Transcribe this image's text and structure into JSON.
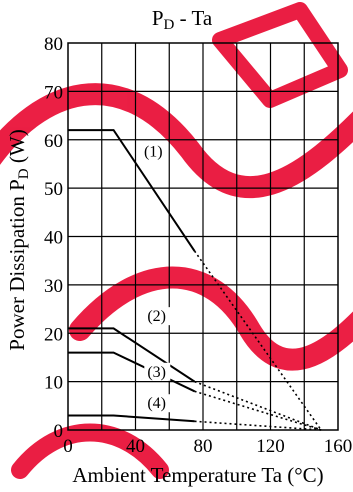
{
  "chart_data": {
    "type": "line",
    "title": "P_D - Ta",
    "title_main": "P",
    "title_sub": "D",
    "title_rest": " - Ta",
    "xlabel": "Ambient Temperature Ta (°C)",
    "ylabel": "Power Dissipation P_D (W)",
    "ylabel_main": "Power Dissipation P",
    "ylabel_sub": "D",
    "ylabel_rest": " (W)",
    "xlim": [
      0,
      160
    ],
    "ylim": [
      0,
      80
    ],
    "x_ticks": [
      "0",
      "40",
      "80",
      "120",
      "160"
    ],
    "y_ticks": [
      "0",
      "10",
      "20",
      "30",
      "40",
      "50",
      "60",
      "70",
      "80"
    ],
    "grid": true,
    "watermark_color": "#e8002a",
    "series": [
      {
        "label": "(1)",
        "solid": [
          [
            0,
            62
          ],
          [
            27,
            62
          ],
          [
            75,
            37
          ]
        ],
        "dotted": [
          [
            75,
            37
          ],
          [
            150,
            0
          ]
        ]
      },
      {
        "label": "(2)",
        "solid": [
          [
            0,
            21
          ],
          [
            27,
            21
          ],
          [
            75,
            10
          ]
        ],
        "dotted": [
          [
            75,
            10
          ],
          [
            150,
            0
          ]
        ]
      },
      {
        "label": "(3)",
        "solid": [
          [
            0,
            16
          ],
          [
            27,
            16
          ],
          [
            75,
            8
          ]
        ],
        "dotted": [
          [
            75,
            8
          ],
          [
            150,
            0
          ]
        ]
      },
      {
        "label": "(4)",
        "solid": [
          [
            0,
            3
          ],
          [
            27,
            3
          ],
          [
            75,
            1.8
          ]
        ],
        "dotted": [
          [
            75,
            1.8
          ],
          [
            150,
            0
          ]
        ]
      }
    ],
    "label_positions": [
      {
        "label": "(1)",
        "x": 45,
        "y": 56.5
      },
      {
        "label": "(2)",
        "x": 47,
        "y": 22.5
      },
      {
        "label": "(3)",
        "x": 47,
        "y": 11
      },
      {
        "label": "(4)",
        "x": 47,
        "y": 4.5
      }
    ]
  }
}
